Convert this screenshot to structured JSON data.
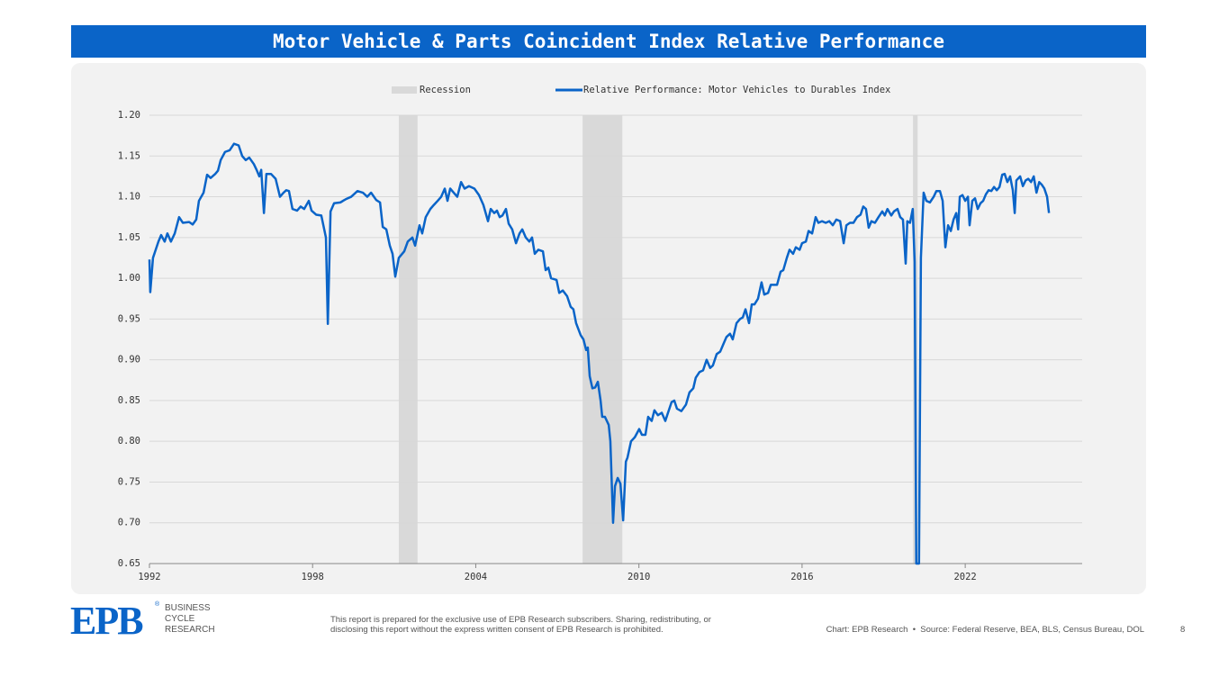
{
  "chart_data": {
    "type": "line",
    "title": "Motor Vehicle & Parts Coincident Index Relative Performance",
    "recession_label": "Recession",
    "recession_color": "#d9d9d9",
    "recessions": [
      {
        "start": 2001.17,
        "end": 2001.86
      },
      {
        "start": 2007.93,
        "end": 2009.39
      },
      {
        "start": 2020.08,
        "end": 2020.25
      }
    ],
    "xlim": [
      1992,
      2026.3
    ],
    "xticks": [
      1992,
      1998,
      2004,
      2010,
      2016,
      2022
    ],
    "ylim": [
      0.65,
      1.2
    ],
    "yticks": [
      0.65,
      {
        "value": 0.7,
        "label": "0.70"
      },
      0.75,
      {
        "value": 0.8,
        "label": "0.80"
      },
      0.85,
      {
        "value": 0.9,
        "label": "0.90"
      },
      0.95,
      {
        "value": 1.0,
        "label": "1.00"
      },
      1.05,
      {
        "value": 1.1,
        "label": "1.10"
      },
      1.15,
      {
        "value": 1.2,
        "label": "1.20"
      }
    ],
    "grid": true,
    "legend": "top",
    "x": [
      1992.0,
      1992.03,
      1992.13,
      1992.33,
      1992.43,
      1992.56,
      1992.66,
      1992.79,
      1992.93,
      1993.09,
      1993.23,
      1993.46,
      1993.59,
      1993.72,
      1993.82,
      1993.99,
      1994.12,
      1994.25,
      1994.42,
      1994.52,
      1994.62,
      1994.78,
      1994.95,
      1995.11,
      1995.28,
      1995.41,
      1995.54,
      1995.67,
      1995.84,
      1995.94,
      1996.04,
      1996.11,
      1996.21,
      1996.3,
      1996.47,
      1996.64,
      1996.8,
      1996.93,
      1997.03,
      1997.13,
      1997.26,
      1997.43,
      1997.56,
      1997.69,
      1997.86,
      1997.96,
      1998.13,
      1998.32,
      1998.49,
      1998.56,
      1998.66,
      1998.79,
      1999.02,
      1999.22,
      1999.42,
      1999.65,
      1999.85,
      2000.01,
      2000.15,
      2000.34,
      2000.48,
      2000.58,
      2000.71,
      2000.84,
      2000.94,
      2001.04,
      2001.17,
      2001.37,
      2001.5,
      2001.67,
      2001.77,
      2001.93,
      2002.03,
      2002.16,
      2002.33,
      2002.46,
      2002.6,
      2002.73,
      2002.86,
      2002.96,
      2003.06,
      2003.19,
      2003.32,
      2003.46,
      2003.59,
      2003.75,
      2003.95,
      2004.12,
      2004.28,
      2004.45,
      2004.55,
      2004.68,
      2004.78,
      2004.88,
      2004.98,
      2005.11,
      2005.21,
      2005.34,
      2005.48,
      2005.61,
      2005.71,
      2005.84,
      2005.97,
      2006.07,
      2006.17,
      2006.3,
      2006.47,
      2006.57,
      2006.67,
      2006.77,
      2006.97,
      2007.07,
      2007.2,
      2007.36,
      2007.49,
      2007.59,
      2007.69,
      2007.86,
      2007.96,
      2008.06,
      2008.12,
      2008.19,
      2008.29,
      2008.39,
      2008.49,
      2008.59,
      2008.65,
      2008.75,
      2008.89,
      2008.95,
      2009.05,
      2009.12,
      2009.22,
      2009.32,
      2009.42,
      2009.52,
      2009.58,
      2009.71,
      2009.85,
      2010.01,
      2010.11,
      2010.24,
      2010.34,
      2010.47,
      2010.57,
      2010.7,
      2010.84,
      2010.97,
      2011.1,
      2011.2,
      2011.3,
      2011.4,
      2011.56,
      2011.73,
      2011.86,
      2012.0,
      2012.09,
      2012.23,
      2012.36,
      2012.49,
      2012.62,
      2012.72,
      2012.86,
      2012.99,
      2013.09,
      2013.22,
      2013.35,
      2013.45,
      2013.59,
      2013.72,
      2013.82,
      2013.92,
      2014.05,
      2014.15,
      2014.25,
      2014.38,
      2014.51,
      2014.61,
      2014.75,
      2014.85,
      2014.98,
      2015.08,
      2015.21,
      2015.31,
      2015.44,
      2015.54,
      2015.67,
      2015.77,
      2015.91,
      2016.0,
      2016.14,
      2016.24,
      2016.37,
      2016.5,
      2016.6,
      2016.73,
      2016.87,
      2017.0,
      2017.13,
      2017.26,
      2017.4,
      2017.53,
      2017.63,
      2017.76,
      2017.89,
      2018.02,
      2018.15,
      2018.25,
      2018.35,
      2018.45,
      2018.55,
      2018.68,
      2018.81,
      2018.95,
      2019.04,
      2019.14,
      2019.28,
      2019.38,
      2019.51,
      2019.61,
      2019.71,
      2019.81,
      2019.87,
      2019.97,
      2020.07,
      2020.14,
      2020.2,
      2020.3,
      2020.37,
      2020.47,
      2020.57,
      2020.7,
      2020.84,
      2020.94,
      2021.07,
      2021.17,
      2021.27,
      2021.37,
      2021.47,
      2021.57,
      2021.67,
      2021.74,
      2021.8,
      2021.9,
      2022.0,
      2022.1,
      2022.16,
      2022.26,
      2022.36,
      2022.46,
      2022.56,
      2022.66,
      2022.76,
      2022.86,
      2022.96,
      2023.06,
      2023.16,
      2023.26,
      2023.36,
      2023.45,
      2023.55,
      2023.65,
      2023.75,
      2023.82,
      2023.88,
      2024.02,
      2024.12,
      2024.22,
      2024.32,
      2024.42,
      2024.52,
      2024.62,
      2024.72,
      2024.81,
      2024.91,
      2025.01,
      2025.08
    ],
    "series": [
      {
        "name": "Relative Performance: Motor Vehicles to Durables Index",
        "color": "#0a64c8",
        "values": [
          1.023,
          0.983,
          1.025,
          1.045,
          1.053,
          1.045,
          1.055,
          1.045,
          1.055,
          1.075,
          1.068,
          1.069,
          1.066,
          1.072,
          1.095,
          1.105,
          1.127,
          1.123,
          1.128,
          1.132,
          1.145,
          1.155,
          1.157,
          1.165,
          1.163,
          1.15,
          1.145,
          1.148,
          1.14,
          1.133,
          1.125,
          1.133,
          1.08,
          1.128,
          1.128,
          1.122,
          1.1,
          1.105,
          1.108,
          1.107,
          1.085,
          1.083,
          1.088,
          1.085,
          1.095,
          1.083,
          1.078,
          1.077,
          1.05,
          0.944,
          1.082,
          1.092,
          1.093,
          1.097,
          1.1,
          1.107,
          1.105,
          1.1,
          1.105,
          1.096,
          1.093,
          1.063,
          1.06,
          1.04,
          1.03,
          1.002,
          1.025,
          1.033,
          1.045,
          1.05,
          1.04,
          1.065,
          1.055,
          1.075,
          1.085,
          1.09,
          1.095,
          1.1,
          1.11,
          1.095,
          1.11,
          1.105,
          1.1,
          1.118,
          1.11,
          1.113,
          1.11,
          1.102,
          1.09,
          1.07,
          1.085,
          1.08,
          1.083,
          1.075,
          1.077,
          1.085,
          1.067,
          1.06,
          1.043,
          1.055,
          1.06,
          1.05,
          1.045,
          1.05,
          1.03,
          1.035,
          1.033,
          1.01,
          1.013,
          1.0,
          0.998,
          0.982,
          0.985,
          0.978,
          0.965,
          0.962,
          0.945,
          0.93,
          0.925,
          0.912,
          0.915,
          0.88,
          0.865,
          0.866,
          0.873,
          0.85,
          0.83,
          0.83,
          0.82,
          0.8,
          0.7,
          0.745,
          0.755,
          0.748,
          0.703,
          0.775,
          0.78,
          0.8,
          0.805,
          0.815,
          0.808,
          0.808,
          0.83,
          0.825,
          0.838,
          0.832,
          0.835,
          0.825,
          0.838,
          0.848,
          0.85,
          0.84,
          0.837,
          0.845,
          0.86,
          0.865,
          0.878,
          0.885,
          0.887,
          0.9,
          0.89,
          0.893,
          0.907,
          0.91,
          0.918,
          0.928,
          0.932,
          0.925,
          0.945,
          0.95,
          0.952,
          0.962,
          0.945,
          0.968,
          0.968,
          0.975,
          0.995,
          0.98,
          0.982,
          0.992,
          0.992,
          0.992,
          1.008,
          1.01,
          1.025,
          1.035,
          1.03,
          1.038,
          1.035,
          1.043,
          1.045,
          1.058,
          1.055,
          1.075,
          1.068,
          1.07,
          1.068,
          1.07,
          1.065,
          1.072,
          1.07,
          1.043,
          1.065,
          1.068,
          1.068,
          1.075,
          1.078,
          1.088,
          1.085,
          1.062,
          1.07,
          1.068,
          1.075,
          1.082,
          1.077,
          1.085,
          1.077,
          1.082,
          1.085,
          1.075,
          1.072,
          1.018,
          1.07,
          1.068,
          1.085,
          1.02,
          0.65,
          0.65,
          1.025,
          1.105,
          1.095,
          1.093,
          1.1,
          1.107,
          1.107,
          1.095,
          1.038,
          1.065,
          1.058,
          1.072,
          1.08,
          1.06,
          1.1,
          1.102,
          1.095,
          1.1,
          1.065,
          1.095,
          1.098,
          1.085,
          1.092,
          1.095,
          1.103,
          1.108,
          1.107,
          1.112,
          1.108,
          1.112,
          1.127,
          1.128,
          1.118,
          1.125,
          1.108,
          1.08,
          1.12,
          1.125,
          1.113,
          1.12,
          1.122,
          1.118,
          1.125,
          1.105,
          1.118,
          1.115,
          1.11,
          1.1,
          1.08
        ]
      }
    ]
  },
  "footer": {
    "logo": "EPB",
    "logo_mark": "®",
    "brand": [
      "BUSINESS",
      "CYCLE",
      "RESEARCH"
    ],
    "disclaimer": [
      "This report is prepared for the exclusive use of EPB Research subscribers. Sharing, redistributing, or",
      "disclosing this report without the express written consent of EPB Research is prohibited."
    ],
    "source": "Chart: EPB Research  •  Source: Federal Reserve, BEA, BLS, Census Bureau, DOL",
    "page": "8"
  }
}
